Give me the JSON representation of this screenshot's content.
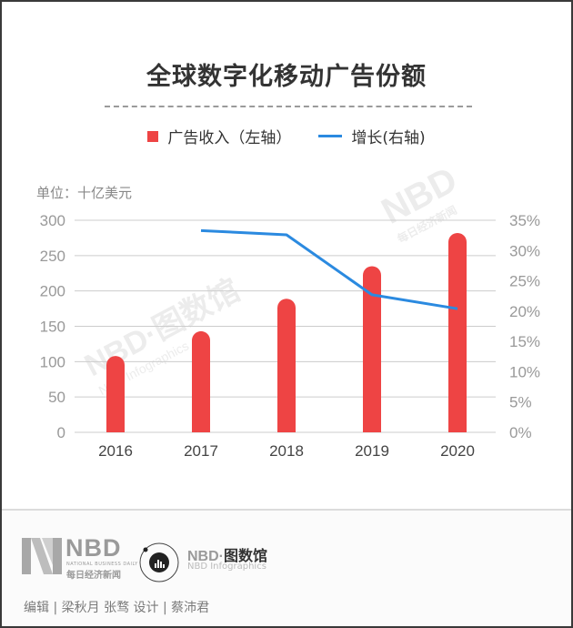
{
  "title": "全球数字化移动广告份额",
  "legend": {
    "bar_label": "广告收入（左轴）",
    "line_label": "增长(右轴)"
  },
  "unit_label": "单位：十亿美元",
  "colors": {
    "bar": "#ee4444",
    "line": "#2b8ae0",
    "grid": "#cccccc",
    "axis_text": "#999999"
  },
  "watermarks": {
    "left_main": "NBD·图数馆",
    "left_sub": "NBD Infographics",
    "right_main": "NBD",
    "right_sub": "每日经济新闻"
  },
  "footer": {
    "nbd_logo_text": "NBD",
    "nbd_logo_sub_en": "NATIONAL BUSINESS DAILY",
    "nbd_logo_sub_cn": "每日经济新闻",
    "infographics_logo_en": "NBD·",
    "infographics_logo_cn": "图数馆",
    "infographics_logo_sub": "NBD Infographics",
    "credits": "编辑 | 梁秋月 张骛  设计 | 蔡沛君"
  },
  "chart_data": {
    "type": "bar",
    "title": "全球数字化移动广告份额",
    "categories": [
      "2016",
      "2017",
      "2018",
      "2019",
      "2020"
    ],
    "series": [
      {
        "name": "广告收入（左轴）",
        "type": "bar",
        "axis": "left",
        "values": [
          108,
          143,
          189,
          235,
          282
        ]
      },
      {
        "name": "增长(右轴)",
        "type": "line",
        "axis": "right",
        "values": [
          null,
          33.3,
          32.6,
          22.7,
          20.4
        ]
      }
    ],
    "xlabel": "",
    "ylabel": "单位：十亿美元",
    "ylim": [
      0,
      300
    ],
    "yticks": [
      "0",
      "50",
      "100",
      "150",
      "200",
      "250",
      "300"
    ],
    "y2lim": [
      0,
      35
    ],
    "y2ticks": [
      "0%",
      "5%",
      "10%",
      "15%",
      "20%",
      "25%",
      "30%",
      "35%"
    ],
    "grid": true,
    "legend_position": "top"
  }
}
